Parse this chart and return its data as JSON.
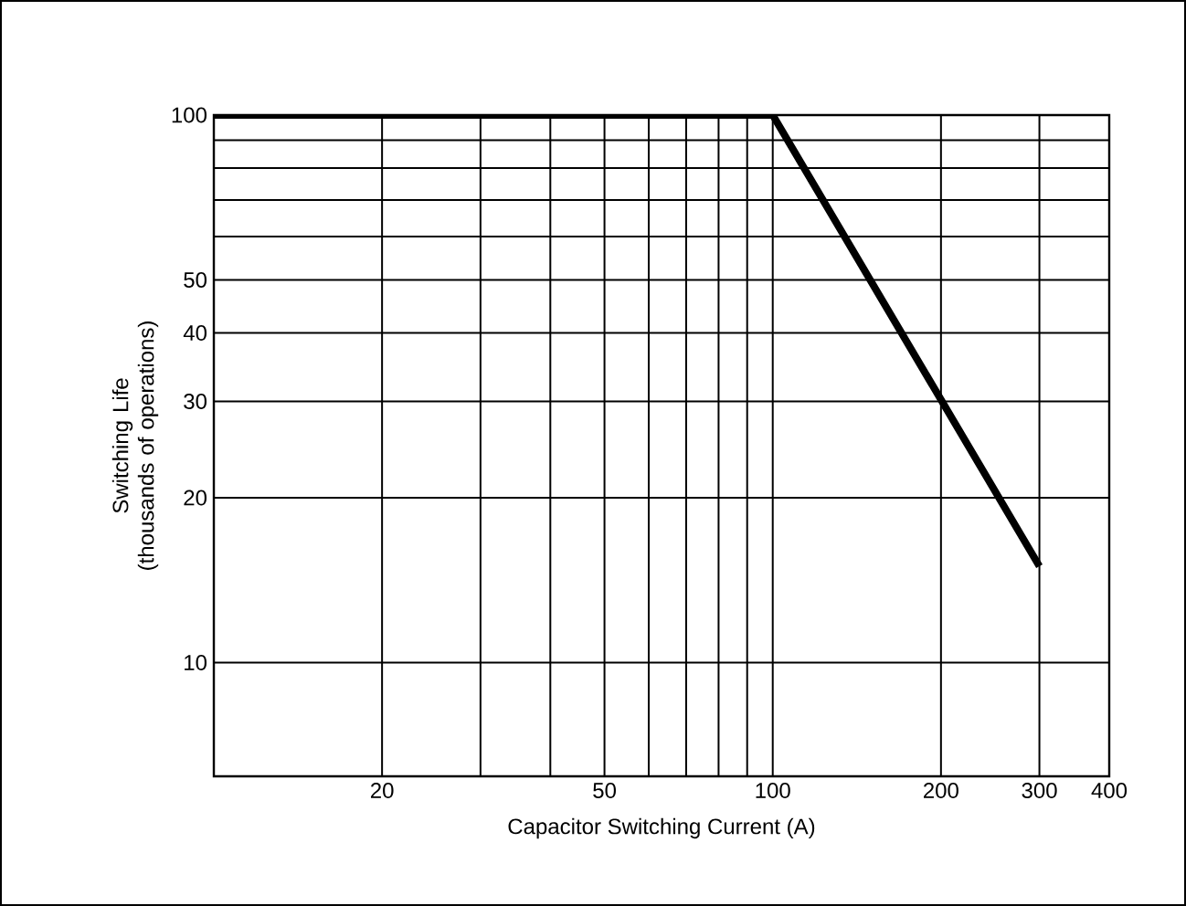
{
  "chart_data": {
    "type": "line",
    "xlabel": "Capacitor Switching Current (A)",
    "ylabel": "Switching Life (thousands of operations)",
    "x": [
      10,
      100,
      300
    ],
    "series": [
      {
        "color": "#000000",
        "values": [
          100,
          100,
          15
        ]
      }
    ],
    "log": "xy",
    "grid": true,
    "marker": "none",
    "line_style": "solid",
    "xlim": [
      10,
      400
    ],
    "ylim": [
      6.2,
      100
    ],
    "xticks": [
      {
        "value": 10,
        "label": null
      },
      20,
      {
        "value": 30,
        "label": null
      },
      {
        "value": 40,
        "label": null
      },
      50,
      {
        "value": 60,
        "label": null
      },
      {
        "value": 70,
        "label": null
      },
      {
        "value": 80,
        "label": null
      },
      {
        "value": 90,
        "label": null
      },
      100,
      200,
      300,
      400
    ],
    "yticks": [
      10,
      20,
      30,
      40,
      50,
      {
        "value": 60,
        "label": null
      },
      {
        "value": 70,
        "label": null
      },
      {
        "value": 80,
        "label": null
      },
      {
        "value": 90,
        "label": null
      },
      100
    ]
  }
}
